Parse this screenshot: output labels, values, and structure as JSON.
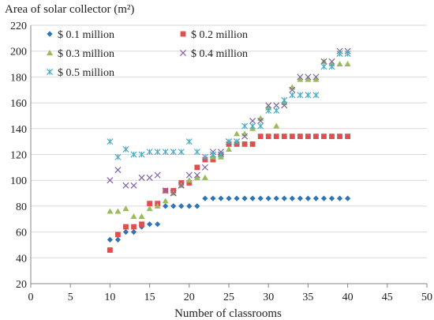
{
  "chart_data": {
    "type": "scatter",
    "title": "",
    "ylabel": "Area of solar collector (m²)",
    "xlabel": "Number of classrooms",
    "xlim": [
      0,
      50
    ],
    "ylim": [
      20,
      220
    ],
    "xticks": [
      0,
      5,
      10,
      15,
      20,
      25,
      30,
      35,
      40,
      45,
      50
    ],
    "yticks": [
      20,
      40,
      60,
      80,
      100,
      120,
      140,
      160,
      180,
      200,
      220
    ],
    "grid": "horizontal",
    "legend_placement": "top-left",
    "series": [
      {
        "name": "$ 0.1 million",
        "marker": "diamond",
        "color": "#2e75b6",
        "x": [
          10,
          11,
          12,
          13,
          14,
          15,
          16,
          17,
          18,
          19,
          20,
          21,
          22,
          23,
          24,
          25,
          26,
          27,
          28,
          29,
          30,
          31,
          32,
          33,
          34,
          35,
          36,
          37,
          38,
          39,
          40
        ],
        "y": [
          54,
          54,
          60,
          60,
          64,
          66,
          66,
          80,
          80,
          80,
          80,
          80,
          86,
          86,
          86,
          86,
          86,
          86,
          86,
          86,
          86,
          86,
          86,
          86,
          86,
          86,
          86,
          86,
          86,
          86,
          86
        ]
      },
      {
        "name": "$ 0.2 million",
        "marker": "square",
        "color": "#e04f4f",
        "x": [
          10,
          11,
          12,
          13,
          14,
          15,
          16,
          17,
          18,
          19,
          20,
          21,
          22,
          23,
          24,
          25,
          26,
          27,
          28,
          29,
          30,
          31,
          32,
          33,
          34,
          35,
          36,
          37,
          38,
          39,
          40
        ],
        "y": [
          46,
          58,
          64,
          64,
          66,
          82,
          82,
          92,
          92,
          98,
          98,
          110,
          116,
          116,
          120,
          128,
          128,
          128,
          128,
          134,
          134,
          134,
          134,
          134,
          134,
          134,
          134,
          134,
          134,
          134,
          134
        ]
      },
      {
        "name": "$ 0.3 million",
        "marker": "triangle",
        "color": "#9bbb59",
        "x": [
          10,
          11,
          12,
          13,
          14,
          15,
          16,
          17,
          18,
          19,
          20,
          21,
          22,
          23,
          24,
          25,
          26,
          27,
          28,
          29,
          30,
          31,
          32,
          33,
          34,
          35,
          36,
          37,
          38,
          39,
          40
        ],
        "y": [
          76,
          76,
          78,
          72,
          72,
          78,
          80,
          84,
          90,
          96,
          100,
          102,
          102,
          118,
          118,
          124,
          136,
          136,
          140,
          148,
          156,
          142,
          160,
          172,
          178,
          178,
          178,
          192,
          190,
          190,
          190
        ]
      },
      {
        "name": "$ 0.4 million",
        "marker": "x",
        "color": "#8064a2",
        "x": [
          10,
          11,
          12,
          13,
          14,
          15,
          16,
          17,
          18,
          19,
          20,
          21,
          22,
          23,
          24,
          25,
          26,
          27,
          28,
          29,
          30,
          31,
          32,
          33,
          34,
          35,
          36,
          37,
          38,
          39,
          40
        ],
        "y": [
          100,
          108,
          96,
          96,
          102,
          102,
          104,
          92,
          90,
          96,
          104,
          104,
          110,
          122,
          122,
          130,
          130,
          134,
          146,
          146,
          158,
          158,
          158,
          170,
          180,
          180,
          180,
          192,
          192,
          200,
          200
        ]
      },
      {
        "name": "$ 0.5 million",
        "marker": "star",
        "color": "#4bacc6",
        "x": [
          10,
          11,
          12,
          13,
          14,
          15,
          16,
          17,
          18,
          19,
          20,
          21,
          22,
          23,
          24,
          25,
          26,
          27,
          28,
          29,
          30,
          31,
          32,
          33,
          34,
          35,
          36,
          37,
          38,
          39,
          40
        ],
        "y": [
          130,
          118,
          124,
          120,
          120,
          122,
          122,
          122,
          122,
          122,
          130,
          122,
          118,
          120,
          120,
          130,
          130,
          142,
          142,
          142,
          154,
          154,
          162,
          166,
          166,
          166,
          166,
          188,
          188,
          198,
          198
        ]
      }
    ]
  }
}
